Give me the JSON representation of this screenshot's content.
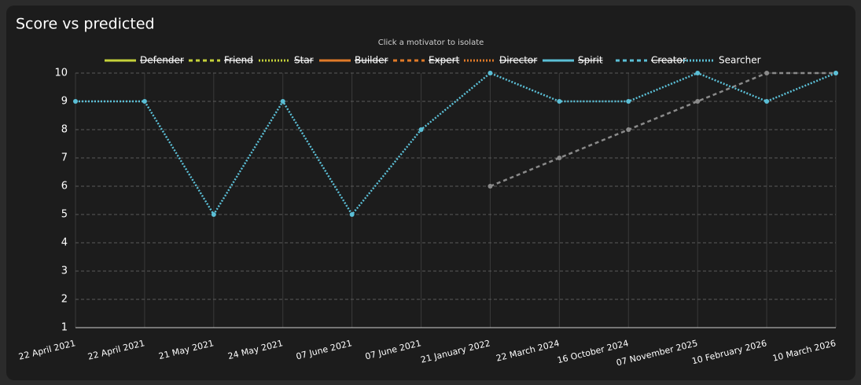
{
  "chart_data": {
    "type": "line",
    "title": "Score vs predicted",
    "subtitle": "Click a motivator to isolate",
    "categories": [
      "22 April 2021",
      "22 April 2021",
      "21 May 2021",
      "24 May 2021",
      "07 June 2021",
      "07 June 2021",
      "21 January 2022",
      "22 March 2024",
      "16 October 2024",
      "07 November 2025",
      "10 February 2026",
      "10 March 2026"
    ],
    "series": [
      {
        "name": "Defender",
        "color": "#c5d13a",
        "dash": "solid",
        "hidden": true,
        "values": [
          null,
          null,
          null,
          null,
          null,
          null,
          null,
          null,
          null,
          null,
          null,
          null
        ]
      },
      {
        "name": "Friend",
        "color": "#c5d13a",
        "dash": "dashed",
        "hidden": true,
        "values": [
          null,
          null,
          null,
          null,
          null,
          null,
          null,
          null,
          null,
          null,
          null,
          null
        ]
      },
      {
        "name": "Star",
        "color": "#c5d13a",
        "dash": "dotted",
        "hidden": true,
        "values": [
          null,
          null,
          null,
          null,
          null,
          null,
          null,
          null,
          null,
          null,
          null,
          null
        ]
      },
      {
        "name": "Builder",
        "color": "#e07a28",
        "dash": "solid",
        "hidden": true,
        "values": [
          null,
          null,
          null,
          null,
          null,
          null,
          null,
          null,
          null,
          null,
          null,
          null
        ]
      },
      {
        "name": "Expert",
        "color": "#e07a28",
        "dash": "dashed",
        "hidden": true,
        "values": [
          null,
          null,
          null,
          null,
          null,
          null,
          null,
          null,
          null,
          null,
          null,
          null
        ]
      },
      {
        "name": "Director",
        "color": "#e07a28",
        "dash": "dotted",
        "hidden": true,
        "values": [
          null,
          null,
          null,
          null,
          null,
          null,
          null,
          null,
          null,
          null,
          null,
          null
        ]
      },
      {
        "name": "Spirit",
        "color": "#5bbfd6",
        "dash": "solid",
        "hidden": true,
        "values": [
          null,
          null,
          null,
          null,
          null,
          null,
          null,
          null,
          null,
          null,
          null,
          null
        ]
      },
      {
        "name": "Creator",
        "color": "#5bbfd6",
        "dash": "dashed",
        "hidden": true,
        "values": [
          null,
          null,
          null,
          null,
          null,
          null,
          null,
          null,
          null,
          null,
          null,
          null
        ]
      },
      {
        "name": "Searcher",
        "color": "#5bbfd6",
        "dash": "dotted",
        "hidden": false,
        "values": [
          9,
          9,
          5,
          9,
          5,
          8,
          10,
          9,
          9,
          10,
          9,
          10
        ]
      }
    ],
    "predicted": {
      "color": "#8a8a8a",
      "dash": "dashed",
      "values": [
        null,
        null,
        null,
        null,
        null,
        null,
        6,
        7,
        8,
        9,
        10,
        10
      ]
    },
    "ylim": [
      1,
      10
    ],
    "yticks": [
      1,
      2,
      3,
      4,
      5,
      6,
      7,
      8,
      9,
      10
    ],
    "grid": true,
    "legend": "top"
  }
}
